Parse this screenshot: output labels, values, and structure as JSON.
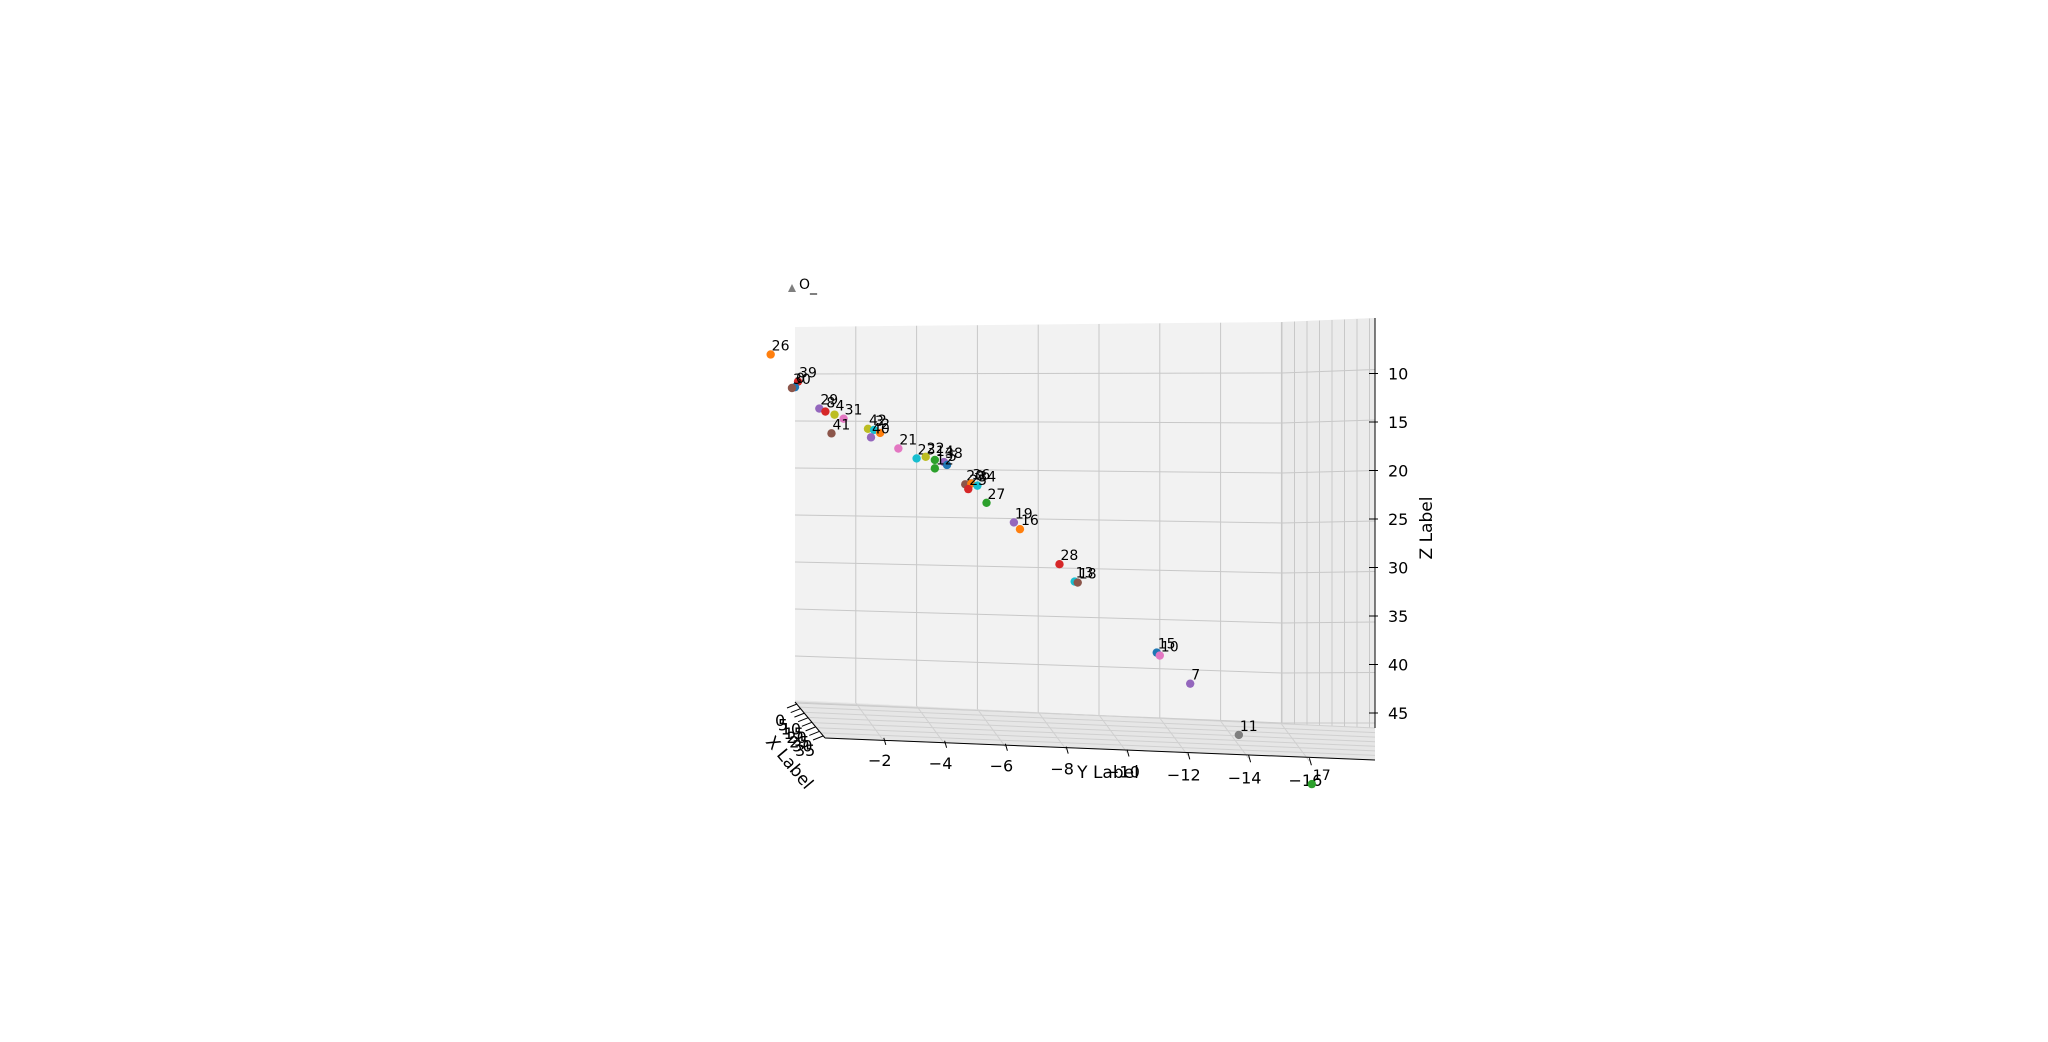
{
  "chart_data": {
    "type": "scatter",
    "projection": "3d",
    "xlabel": "X Label",
    "ylabel": "Y Label",
    "zlabel": "Z Label",
    "x_ticks": [
      "0",
      "5",
      "10",
      "15",
      "20",
      "25",
      "30",
      "35"
    ],
    "y_ticks": [
      "−2",
      "−4",
      "−6",
      "−8",
      "−10",
      "−12",
      "−14",
      "−16"
    ],
    "z_ticks": [
      "10",
      "15",
      "20",
      "25",
      "30",
      "35",
      "40",
      "45"
    ],
    "ylim": [
      0,
      -16
    ],
    "zlim": [
      5,
      47
    ],
    "grid": true,
    "origin_marker": {
      "label": "O",
      "color": "#7f7f7f",
      "marker": "triangle"
    },
    "points": [
      {
        "label": "26",
        "y": 0.8,
        "z": 8.0,
        "color": "#ff7f0e"
      },
      {
        "label": "39",
        "y": -0.1,
        "z": 10.8,
        "color": "#d62728"
      },
      {
        "label": "0",
        "y": 0.0,
        "z": 11.4,
        "color": "#1f77b4"
      },
      {
        "label": "30",
        "y": 0.1,
        "z": 11.5,
        "color": "#8c564b"
      },
      {
        "label": "29",
        "y": -0.8,
        "z": 13.6,
        "color": "#9467bd"
      },
      {
        "label": "8",
        "y": -1.0,
        "z": 13.9,
        "color": "#d62728"
      },
      {
        "label": "4",
        "y": -1.3,
        "z": 14.2,
        "color": "#bcbd22"
      },
      {
        "label": "31",
        "y": -1.6,
        "z": 14.6,
        "color": "#e377c2"
      },
      {
        "label": "41",
        "y": -1.2,
        "z": 16.2,
        "color": "#8c564b"
      },
      {
        "label": "42",
        "y": -2.4,
        "z": 15.6,
        "color": "#bcbd22"
      },
      {
        "label": "3",
        "y": -2.6,
        "z": 15.7,
        "color": "#17becf"
      },
      {
        "label": "2",
        "y": -2.8,
        "z": 16.0,
        "color": "#ff7f0e"
      },
      {
        "label": "40",
        "y": -2.5,
        "z": 16.5,
        "color": "#9467bd"
      },
      {
        "label": "21",
        "y": -3.4,
        "z": 17.6,
        "color": "#e377c2"
      },
      {
        "label": "23",
        "y": -4.0,
        "z": 18.6,
        "color": "#17becf"
      },
      {
        "label": "22",
        "y": -4.3,
        "z": 18.4,
        "color": "#bcbd22"
      },
      {
        "label": "14",
        "y": -4.6,
        "z": 18.7,
        "color": "#2ca02c"
      },
      {
        "label": "38",
        "y": -4.9,
        "z": 18.9,
        "color": "#9467bd"
      },
      {
        "label": "5",
        "y": -5.0,
        "z": 19.2,
        "color": "#1f77b4"
      },
      {
        "label": "12",
        "y": -4.6,
        "z": 19.6,
        "color": "#2ca02c"
      },
      {
        "label": "20",
        "y": -5.6,
        "z": 21.2,
        "color": "#8c564b"
      },
      {
        "label": "36",
        "y": -5.8,
        "z": 21.1,
        "color": "#ff7f0e"
      },
      {
        "label": "34",
        "y": -6.0,
        "z": 21.3,
        "color": "#17becf"
      },
      {
        "label": "25",
        "y": -5.7,
        "z": 21.7,
        "color": "#d62728"
      },
      {
        "label": "27",
        "y": -6.3,
        "z": 23.1,
        "color": "#2ca02c"
      },
      {
        "label": "19",
        "y": -7.2,
        "z": 25.1,
        "color": "#9467bd"
      },
      {
        "label": "16",
        "y": -7.4,
        "z": 25.8,
        "color": "#ff7f0e"
      },
      {
        "label": "28",
        "y": -8.7,
        "z": 29.4,
        "color": "#d62728"
      },
      {
        "label": "13",
        "y": -9.2,
        "z": 31.2,
        "color": "#17becf"
      },
      {
        "label": "18",
        "y": -9.3,
        "z": 31.3,
        "color": "#8c564b"
      },
      {
        "label": "15",
        "y": -11.9,
        "z": 38.5,
        "color": "#1f77b4"
      },
      {
        "label": "10",
        "y": -12.0,
        "z": 38.8,
        "color": "#e377c2"
      },
      {
        "label": "7",
        "y": -13.0,
        "z": 41.7,
        "color": "#9467bd"
      },
      {
        "label": "11",
        "y": -14.6,
        "z": 47.0,
        "color": "#7f7f7f"
      },
      {
        "label": "17",
        "y": -17.0,
        "z": 52.0,
        "color": "#2ca02c"
      }
    ]
  }
}
